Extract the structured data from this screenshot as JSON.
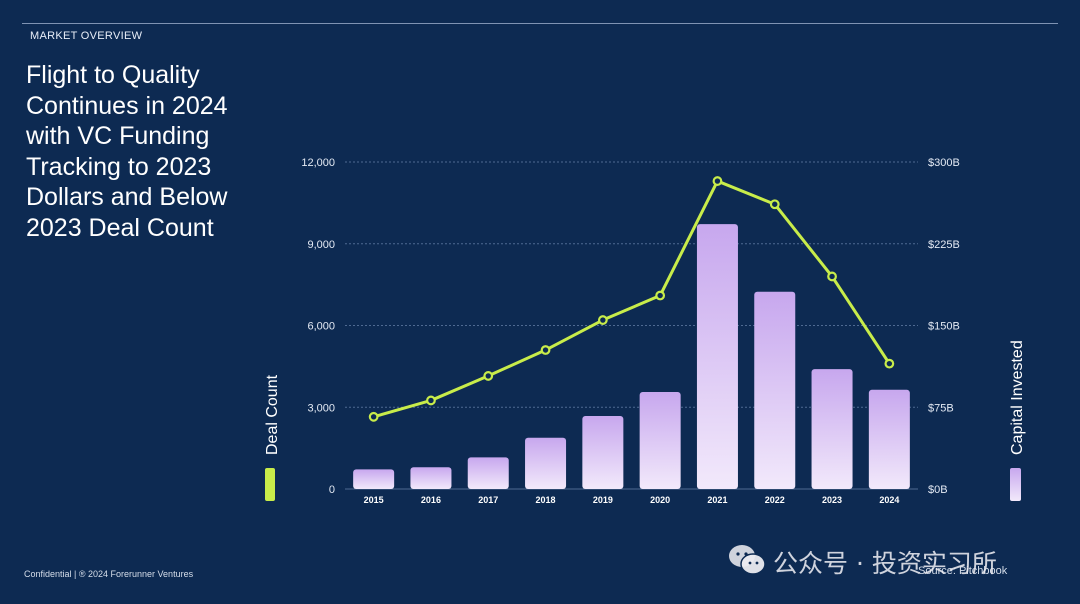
{
  "header": {
    "section_label": "MARKET OVERVIEW",
    "title": "Flight to Quality\nContinues in 2024\nwith VC Funding\nTracking to 2023\nDollars and Below\n2023 Deal Count"
  },
  "footer": {
    "confidential": "Confidential | ® 2024 Forerunner Ventures",
    "source": "Source: Pitchbook"
  },
  "watermark": {
    "text": "公众号 · 投资实习所"
  },
  "colors": {
    "background": "#0d2a52",
    "line": "#c8ec4a",
    "bar_top": "#c7a7ee",
    "bar_bottom": "#f2e9fb",
    "grid": "#4f6a92"
  },
  "chart_data": {
    "type": "bar",
    "categories": [
      "2015",
      "2016",
      "2017",
      "2018",
      "2019",
      "2020",
      "2021",
      "2022",
      "2023",
      "2024"
    ],
    "series": [
      {
        "name": "Capital Invested",
        "type": "bar",
        "axis": "right",
        "values": [
          18,
          20,
          29,
          47,
          67,
          89,
          243,
          181,
          110,
          91
        ]
      },
      {
        "name": "Deal Count",
        "type": "line",
        "axis": "left",
        "values": [
          2650,
          3250,
          4150,
          5100,
          6200,
          7100,
          11300,
          10450,
          7800,
          4600
        ]
      }
    ],
    "ylabel": "Deal Count",
    "y2label": "Capital Invested",
    "ylim": [
      0,
      12000
    ],
    "y2lim": [
      0,
      300
    ],
    "yticks": [
      "0",
      "3,000",
      "6,000",
      "9,000",
      "12,000"
    ],
    "y2ticks": [
      "$0B",
      "$75B",
      "$150B",
      "$225B",
      "$300B"
    ],
    "grid": true,
    "legend": "axis-title swatches"
  }
}
